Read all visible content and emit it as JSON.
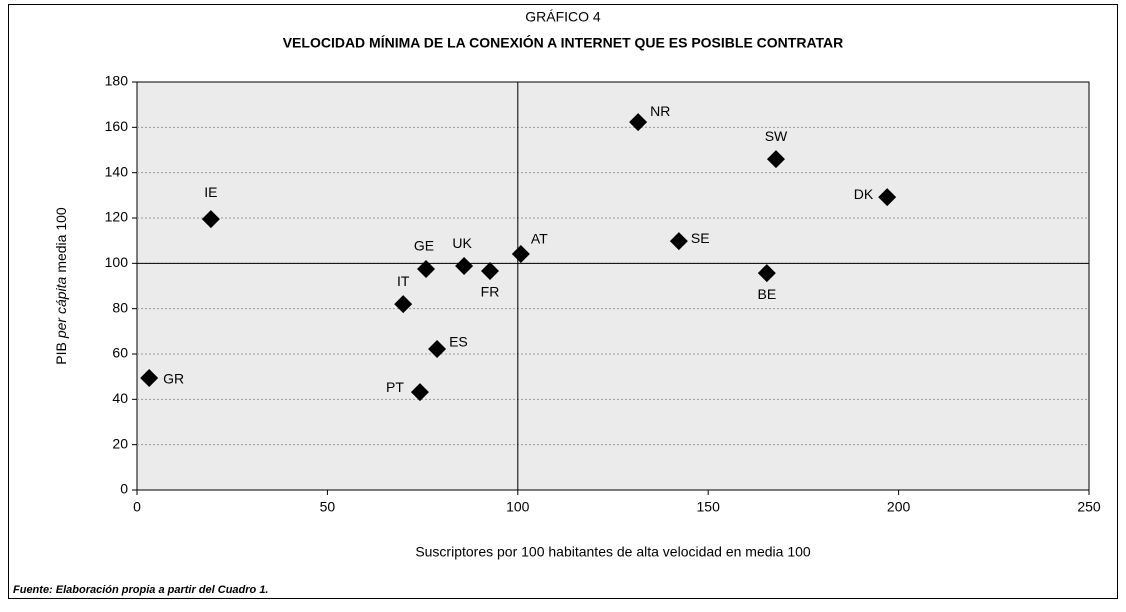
{
  "chart_data": {
    "type": "scatter",
    "title": "GRÁFICO 4",
    "subtitle": "VELOCIDAD MÍNIMA DE LA CONEXIÓN A INTERNET QUE ES POSIBLE CONTRATAR",
    "xlabel": "Suscriptores por 100 habitantes de alta velocidad en media 100",
    "ylabel": {
      "before": "PIB",
      "italic": "per cápita",
      "after": "media 100"
    },
    "source": "Fuente: Elaboración propia a partir del Cuadro 1.",
    "point_labels": [
      "GR",
      "IE",
      "IT",
      "GE",
      "UK",
      "FR",
      "AT",
      "ES",
      "PT",
      "NR",
      "SW",
      "DK",
      "SE",
      "BE"
    ],
    "x": [
      3.2,
      19.4,
      69.9,
      75.9,
      85.9,
      92.7,
      100.8,
      78.8,
      74.3,
      131.6,
      167.8,
      197,
      142.3,
      165.4
    ],
    "values": [
      49.4,
      119.5,
      82,
      97.5,
      98.8,
      96.6,
      104.1,
      62.2,
      43.2,
      162.3,
      146,
      129.2,
      109.8,
      95.7
    ],
    "color": "#000000",
    "xlim": [
      0,
      250
    ],
    "xticks": [
      0,
      50,
      100,
      150,
      200,
      250
    ],
    "ylim": [
      0,
      180
    ],
    "yticks": [
      0,
      20,
      40,
      60,
      80,
      100,
      120,
      140,
      160,
      180
    ],
    "grid": true,
    "xline": 100,
    "yline": 100
  }
}
